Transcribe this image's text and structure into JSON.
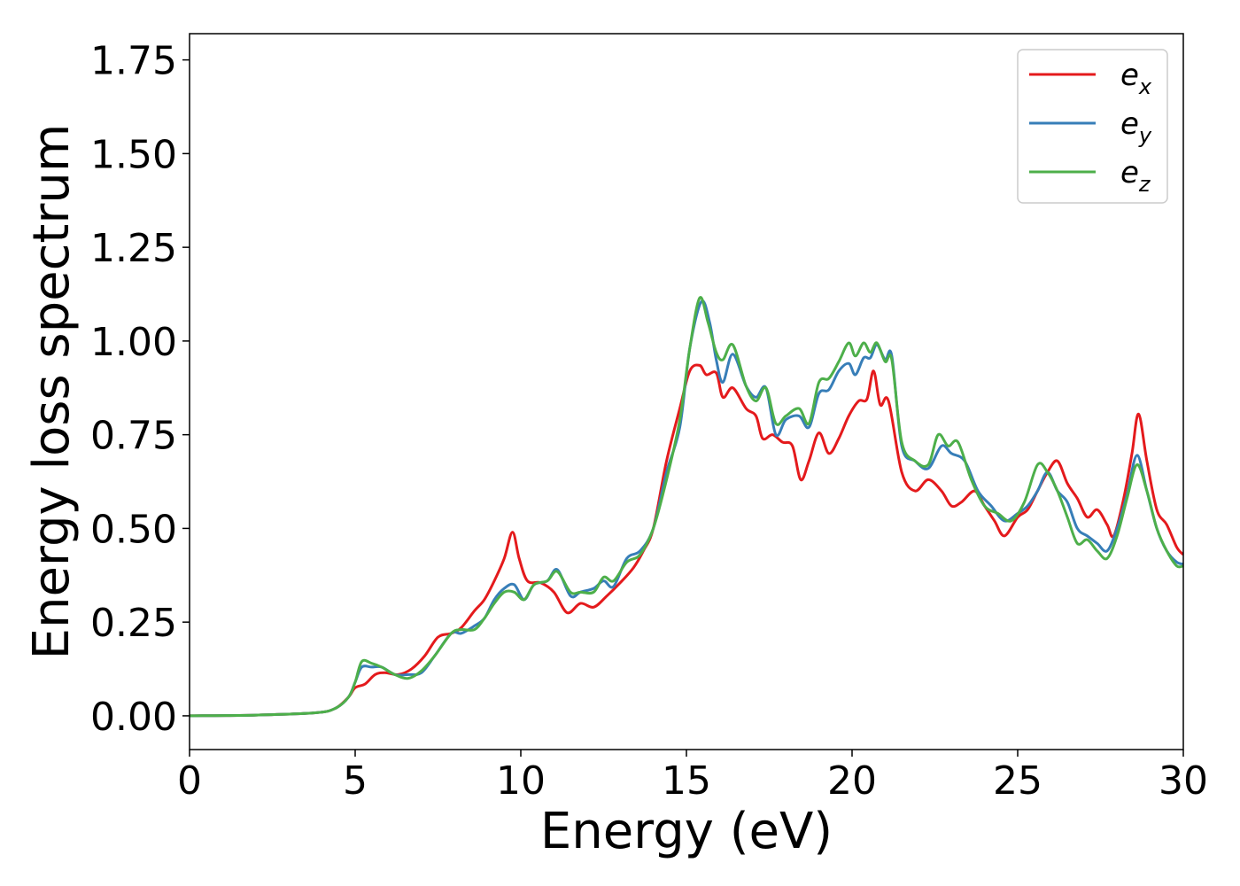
{
  "chart_data": {
    "type": "line",
    "xlabel": "Energy (eV)",
    "ylabel": "Energy loss spectrum",
    "xlim": [
      0,
      30
    ],
    "ylim": [
      -0.09,
      1.82
    ],
    "xticks": [
      0,
      5,
      10,
      15,
      20,
      25,
      30
    ],
    "xtick_labels": [
      "0",
      "5",
      "10",
      "15",
      "20",
      "25",
      "30"
    ],
    "yticks": [
      0,
      0.25,
      0.5,
      0.75,
      1.0,
      1.25,
      1.5,
      1.75
    ],
    "ytick_labels": [
      "0.00",
      "0.25",
      "0.50",
      "0.75",
      "1.00",
      "1.25",
      "1.50",
      "1.75"
    ],
    "grid": false,
    "legend_position": "top-right",
    "series": [
      {
        "name": "e",
        "subscript": "x",
        "color": "#e41a1c",
        "x": [
          0,
          2,
          3.8,
          4.4,
          4.8,
          5.0,
          5.3,
          5.6,
          5.9,
          6.3,
          6.7,
          7.1,
          7.5,
          7.9,
          8.2,
          8.6,
          8.9,
          9.2,
          9.5,
          9.75,
          9.95,
          10.2,
          10.6,
          11.0,
          11.4,
          11.8,
          12.2,
          12.6,
          13.0,
          13.4,
          13.7,
          14.0,
          14.4,
          14.8,
          15.1,
          15.4,
          15.6,
          15.9,
          16.1,
          16.4,
          16.8,
          17.1,
          17.3,
          17.6,
          17.9,
          18.2,
          18.45,
          18.7,
          19.0,
          19.3,
          19.6,
          19.9,
          20.2,
          20.45,
          20.65,
          20.85,
          21.1,
          21.5,
          21.9,
          22.3,
          22.7,
          23.0,
          23.3,
          23.7,
          24.0,
          24.3,
          24.6,
          25.0,
          25.3,
          25.6,
          25.9,
          26.2,
          26.5,
          26.8,
          27.1,
          27.4,
          27.7,
          27.9,
          28.2,
          28.45,
          28.65,
          28.9,
          29.2,
          29.5,
          29.8,
          30.0
        ],
        "y": [
          0.0,
          0.002,
          0.008,
          0.02,
          0.05,
          0.075,
          0.085,
          0.11,
          0.115,
          0.11,
          0.125,
          0.16,
          0.21,
          0.22,
          0.235,
          0.28,
          0.31,
          0.36,
          0.42,
          0.49,
          0.42,
          0.36,
          0.355,
          0.33,
          0.275,
          0.3,
          0.29,
          0.32,
          0.355,
          0.395,
          0.44,
          0.5,
          0.68,
          0.82,
          0.92,
          0.935,
          0.91,
          0.915,
          0.85,
          0.875,
          0.82,
          0.8,
          0.74,
          0.75,
          0.73,
          0.72,
          0.63,
          0.68,
          0.755,
          0.7,
          0.74,
          0.8,
          0.84,
          0.845,
          0.92,
          0.83,
          0.84,
          0.65,
          0.6,
          0.63,
          0.6,
          0.56,
          0.57,
          0.6,
          0.56,
          0.52,
          0.48,
          0.53,
          0.55,
          0.6,
          0.65,
          0.68,
          0.62,
          0.58,
          0.53,
          0.55,
          0.51,
          0.48,
          0.58,
          0.7,
          0.805,
          0.68,
          0.55,
          0.51,
          0.45,
          0.43
        ]
      },
      {
        "name": "e",
        "subscript": "y",
        "color": "#377eb8",
        "x": [
          0,
          2,
          3.8,
          4.4,
          4.8,
          5.0,
          5.2,
          5.5,
          5.8,
          6.2,
          6.6,
          7.0,
          7.4,
          7.9,
          8.2,
          8.6,
          8.9,
          9.2,
          9.5,
          9.8,
          10.1,
          10.4,
          10.8,
          11.1,
          11.5,
          11.8,
          12.2,
          12.5,
          12.8,
          13.2,
          13.6,
          14.0,
          14.4,
          14.8,
          15.1,
          15.45,
          15.7,
          15.9,
          16.1,
          16.4,
          16.8,
          17.1,
          17.4,
          17.7,
          18.0,
          18.4,
          18.7,
          19.0,
          19.3,
          19.6,
          19.9,
          20.1,
          20.35,
          20.55,
          20.75,
          21.0,
          21.2,
          21.5,
          21.9,
          22.3,
          22.7,
          23.0,
          23.4,
          23.8,
          24.2,
          24.6,
          25.0,
          25.3,
          25.6,
          25.9,
          26.2,
          26.5,
          26.8,
          27.1,
          27.4,
          27.7,
          28.0,
          28.3,
          28.6,
          28.9,
          29.2,
          29.5,
          29.8,
          30.0
        ],
        "y": [
          0.0,
          0.002,
          0.008,
          0.02,
          0.05,
          0.09,
          0.13,
          0.13,
          0.13,
          0.11,
          0.11,
          0.115,
          0.16,
          0.22,
          0.22,
          0.24,
          0.26,
          0.31,
          0.34,
          0.35,
          0.31,
          0.35,
          0.36,
          0.39,
          0.32,
          0.33,
          0.34,
          0.36,
          0.345,
          0.42,
          0.44,
          0.5,
          0.65,
          0.77,
          0.98,
          1.105,
          1.05,
          0.95,
          0.89,
          0.965,
          0.88,
          0.85,
          0.875,
          0.75,
          0.79,
          0.8,
          0.77,
          0.86,
          0.87,
          0.92,
          0.94,
          0.91,
          0.955,
          0.955,
          0.99,
          0.95,
          0.96,
          0.72,
          0.68,
          0.66,
          0.72,
          0.7,
          0.68,
          0.6,
          0.56,
          0.52,
          0.54,
          0.56,
          0.6,
          0.65,
          0.6,
          0.57,
          0.5,
          0.48,
          0.46,
          0.44,
          0.5,
          0.59,
          0.695,
          0.6,
          0.5,
          0.44,
          0.41,
          0.405
        ]
      },
      {
        "name": "e",
        "subscript": "z",
        "color": "#4daf4a",
        "x": [
          0,
          2,
          3.8,
          4.4,
          4.8,
          5.0,
          5.2,
          5.5,
          5.8,
          6.2,
          6.6,
          7.0,
          7.4,
          7.9,
          8.2,
          8.6,
          8.9,
          9.2,
          9.5,
          9.8,
          10.1,
          10.4,
          10.8,
          11.1,
          11.5,
          11.8,
          12.2,
          12.5,
          12.8,
          13.2,
          13.6,
          14.0,
          14.4,
          14.8,
          15.1,
          15.4,
          15.65,
          15.9,
          16.1,
          16.4,
          16.8,
          17.1,
          17.4,
          17.7,
          18.0,
          18.4,
          18.7,
          19.0,
          19.3,
          19.6,
          19.9,
          20.1,
          20.35,
          20.55,
          20.75,
          21.0,
          21.2,
          21.5,
          21.9,
          22.3,
          22.6,
          22.9,
          23.2,
          23.6,
          24.0,
          24.4,
          24.8,
          25.2,
          25.6,
          25.9,
          26.2,
          26.5,
          26.8,
          27.1,
          27.4,
          27.7,
          28.0,
          28.3,
          28.6,
          28.9,
          29.2,
          29.5,
          29.8,
          30.0
        ],
        "y": [
          0.0,
          0.002,
          0.008,
          0.02,
          0.05,
          0.09,
          0.145,
          0.14,
          0.13,
          0.11,
          0.1,
          0.12,
          0.16,
          0.22,
          0.23,
          0.23,
          0.26,
          0.3,
          0.33,
          0.33,
          0.31,
          0.35,
          0.36,
          0.385,
          0.33,
          0.33,
          0.33,
          0.37,
          0.36,
          0.41,
          0.43,
          0.5,
          0.63,
          0.79,
          0.98,
          1.115,
          1.05,
          0.97,
          0.95,
          0.99,
          0.88,
          0.84,
          0.875,
          0.78,
          0.8,
          0.82,
          0.78,
          0.89,
          0.9,
          0.945,
          0.995,
          0.96,
          0.995,
          0.97,
          0.995,
          0.945,
          0.95,
          0.73,
          0.68,
          0.67,
          0.75,
          0.72,
          0.73,
          0.63,
          0.56,
          0.54,
          0.52,
          0.57,
          0.67,
          0.65,
          0.6,
          0.53,
          0.46,
          0.47,
          0.44,
          0.42,
          0.48,
          0.58,
          0.67,
          0.6,
          0.5,
          0.44,
          0.4,
          0.4
        ]
      }
    ]
  }
}
